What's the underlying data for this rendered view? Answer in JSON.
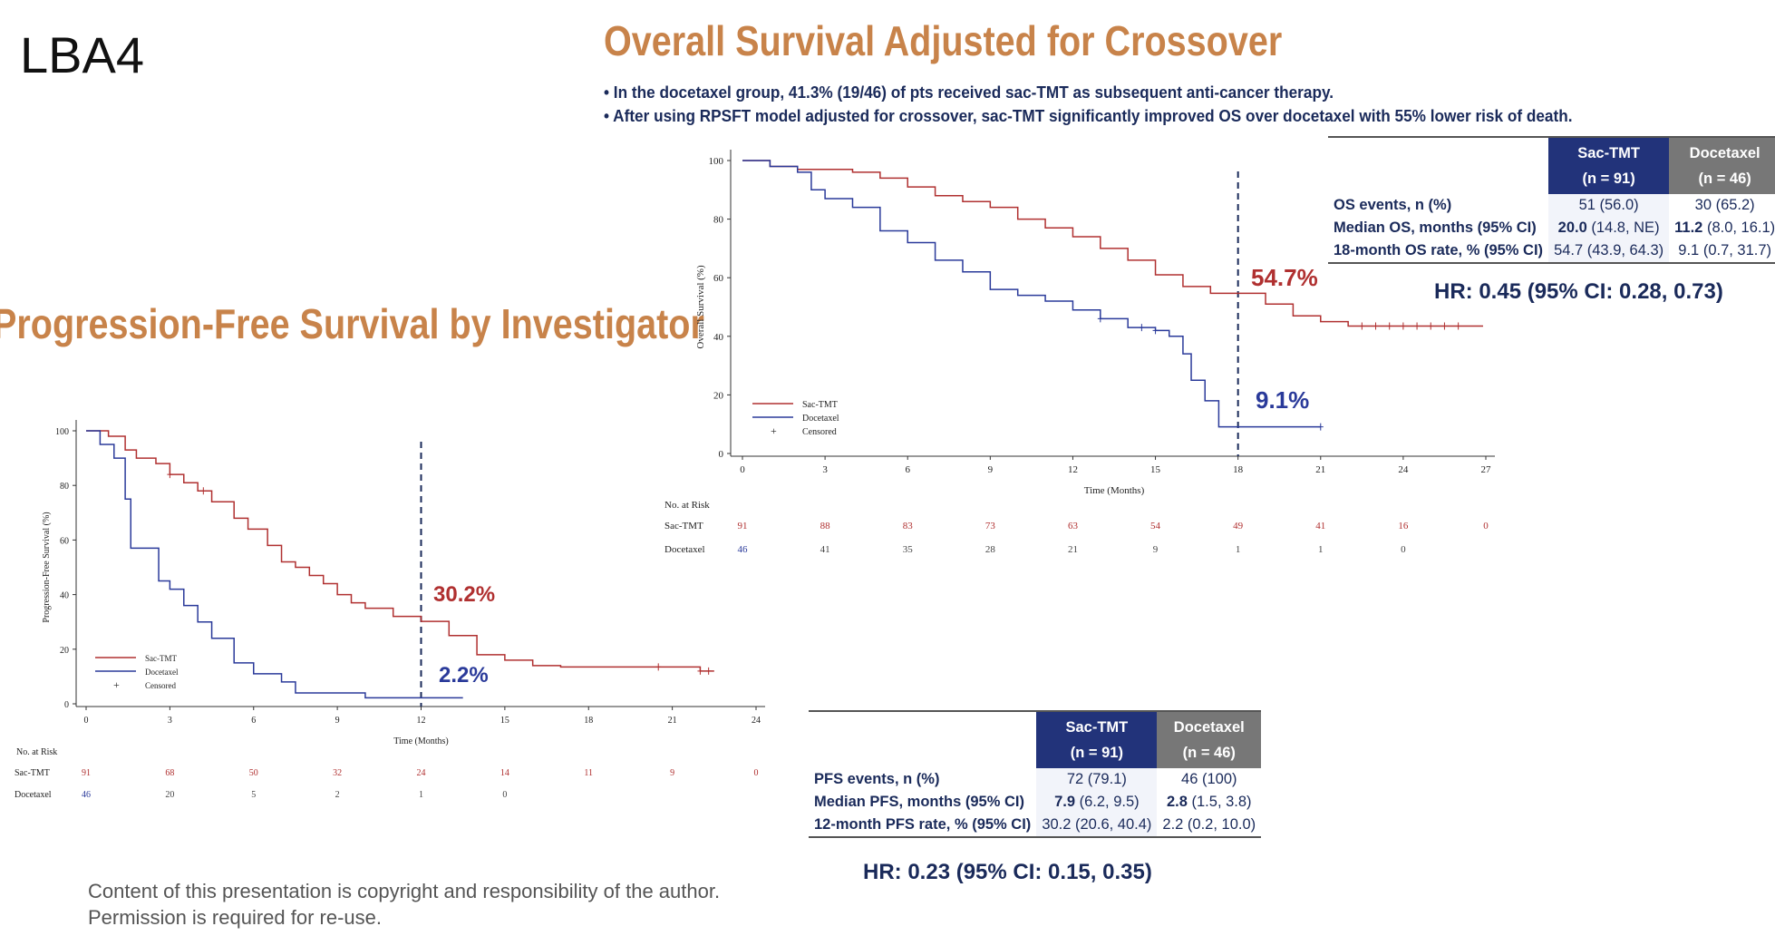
{
  "slide_label": "LBA4",
  "os": {
    "title": "Overall Survival Adjusted for Crossover",
    "bullets": [
      "• In the docetaxel group, 41.3% (19/46) of pts received sac-TMT as subsequent anti-cancer therapy.",
      "• After using RPSFT model adjusted for crossover, sac-TMT significantly improved OS over docetaxel with 55% lower risk of death."
    ],
    "table": {
      "headers": [
        [
          "Sac-TMT",
          "(n = 91)"
        ],
        [
          "Docetaxel",
          "(n = 46)"
        ]
      ],
      "rows": [
        {
          "label": "OS events, n (%)",
          "a_bold": "",
          "a": "51 (56.0)",
          "b_bold": "",
          "b": "30 (65.2)"
        },
        {
          "label": "Median OS, months (95% CI)",
          "a_bold": "20.0",
          "a": " (14.8, NE)",
          "b_bold": "11.2",
          "b": " (8.0, 16.1)"
        },
        {
          "label": "18-month OS rate, % (95% CI)",
          "a_bold": "",
          "a": "54.7 (43.9, 64.3)",
          "b_bold": "",
          "b": "9.1 (0.7, 31.7)"
        }
      ]
    },
    "hr": "HR: 0.45 (95% CI: 0.28, 0.73)"
  },
  "pfs": {
    "title": "Progression-Free Survival by Investigator",
    "table": {
      "headers": [
        [
          "Sac-TMT",
          "(n = 91)"
        ],
        [
          "Docetaxel",
          "(n = 46)"
        ]
      ],
      "rows": [
        {
          "label": "PFS events, n (%)",
          "a_bold": "",
          "a": "72 (79.1)",
          "b_bold": "",
          "b": "46 (100)"
        },
        {
          "label": "Median PFS, months (95% CI)",
          "a_bold": "7.9",
          "a": " (6.2, 9.5)",
          "b_bold": "2.8",
          "b": " (1.5, 3.8)"
        },
        {
          "label": "12-month PFS rate, % (95% CI)",
          "a_bold": "",
          "a": "30.2 (20.6, 40.4)",
          "b_bold": "",
          "b": "2.2 (0.2, 10.0)"
        }
      ]
    },
    "hr": "HR: 0.23 (95% CI: 0.15, 0.35)"
  },
  "copyright": [
    "Content of this presentation is copyright and responsibility of the author.",
    "Permission is required for re-use."
  ],
  "chart_data": [
    {
      "type": "line",
      "id": "os",
      "ylabel": "Overall Survival (%)",
      "xlabel": "Time (Months)",
      "xlim": [
        0,
        27
      ],
      "ylim": [
        0,
        100
      ],
      "xticks": [
        0,
        3,
        6,
        9,
        12,
        15,
        18,
        21,
        24,
        27
      ],
      "yticks": [
        0,
        20,
        40,
        60,
        80,
        100
      ],
      "marker_x": 18,
      "legend": [
        "Sac-TMT",
        "Docetaxel",
        "Censored"
      ],
      "annotations": [
        {
          "text": "54.7%",
          "series": 0
        },
        {
          "text": "9.1%",
          "series": 1
        }
      ],
      "series": [
        {
          "name": "Sac-TMT",
          "color": "#b03030",
          "points": [
            [
              0,
              100
            ],
            [
              1,
              98
            ],
            [
              2,
              97
            ],
            [
              4,
              96
            ],
            [
              5,
              94
            ],
            [
              6,
              91
            ],
            [
              7,
              88
            ],
            [
              8,
              86
            ],
            [
              9,
              84
            ],
            [
              10,
              80
            ],
            [
              11,
              77
            ],
            [
              12,
              74
            ],
            [
              13,
              70
            ],
            [
              14,
              66
            ],
            [
              15,
              61
            ],
            [
              16,
              57
            ],
            [
              17,
              54.7
            ],
            [
              19,
              51
            ],
            [
              20,
              47
            ],
            [
              21,
              45
            ],
            [
              22,
              43.5
            ],
            [
              26.9,
              43.5
            ]
          ],
          "censored": [
            22.5,
            23,
            23.5,
            24,
            24.5,
            25,
            25.5,
            26
          ]
        },
        {
          "name": "Docetaxel",
          "color": "#2a3a9a",
          "points": [
            [
              0,
              100
            ],
            [
              1,
              98
            ],
            [
              2,
              96
            ],
            [
              2.5,
              90
            ],
            [
              3,
              87
            ],
            [
              4,
              84
            ],
            [
              5,
              76
            ],
            [
              6,
              72
            ],
            [
              7,
              66
            ],
            [
              8,
              62
            ],
            [
              9,
              56
            ],
            [
              10,
              54
            ],
            [
              11,
              52
            ],
            [
              12,
              49
            ],
            [
              13,
              46
            ],
            [
              14,
              43
            ],
            [
              15,
              42
            ],
            [
              15.5,
              40
            ],
            [
              16,
              34
            ],
            [
              16.3,
              25
            ],
            [
              16.8,
              18
            ],
            [
              17.3,
              9.1
            ],
            [
              21,
              9.1
            ]
          ],
          "censored": [
            13,
            14.5,
            15,
            21
          ]
        }
      ],
      "risk_table": {
        "title": "No. at Risk",
        "rows": [
          {
            "name": "Sac-TMT",
            "values": [
              91,
              88,
              83,
              73,
              63,
              54,
              49,
              41,
              16,
              0
            ]
          },
          {
            "name": "Docetaxel",
            "values": [
              46,
              41,
              35,
              28,
              21,
              9,
              1,
              1,
              0
            ]
          }
        ]
      }
    },
    {
      "type": "line",
      "id": "pfs",
      "ylabel": "Progression-Free Survival (%)",
      "xlabel": "Time (Months)",
      "xlim": [
        0,
        24
      ],
      "ylim": [
        0,
        100
      ],
      "xticks": [
        0,
        3,
        6,
        9,
        12,
        15,
        18,
        21,
        24
      ],
      "yticks": [
        0,
        20,
        40,
        60,
        80,
        100
      ],
      "marker_x": 12,
      "legend": [
        "Sac-TMT",
        "Docetaxel",
        "Censored"
      ],
      "annotations": [
        {
          "text": "30.2%",
          "series": 0
        },
        {
          "text": "2.2%",
          "series": 1
        }
      ],
      "series": [
        {
          "name": "Sac-TMT",
          "color": "#b03030",
          "points": [
            [
              0,
              100
            ],
            [
              0.8,
              98
            ],
            [
              1.4,
              93
            ],
            [
              1.8,
              90
            ],
            [
              2.5,
              88
            ],
            [
              3,
              84
            ],
            [
              3.5,
              81
            ],
            [
              4,
              78
            ],
            [
              4.5,
              74
            ],
            [
              5.3,
              68
            ],
            [
              5.8,
              64
            ],
            [
              6.5,
              58
            ],
            [
              7,
              52
            ],
            [
              7.5,
              50
            ],
            [
              8,
              47
            ],
            [
              8.5,
              44
            ],
            [
              9,
              40
            ],
            [
              9.5,
              37
            ],
            [
              10,
              35
            ],
            [
              11,
              32
            ],
            [
              12,
              30.2
            ],
            [
              13,
              25
            ],
            [
              14,
              18
            ],
            [
              15,
              16
            ],
            [
              16,
              14
            ],
            [
              17,
              13.5
            ],
            [
              22,
              12
            ],
            [
              22.5,
              12
            ]
          ],
          "censored": [
            3,
            4.2,
            20.5,
            22,
            22.3
          ]
        },
        {
          "name": "Docetaxel",
          "color": "#2a3a9a",
          "points": [
            [
              0,
              100
            ],
            [
              0.5,
              95
            ],
            [
              1,
              90
            ],
            [
              1.4,
              75
            ],
            [
              1.6,
              57
            ],
            [
              2.6,
              45
            ],
            [
              3,
              42
            ],
            [
              3.5,
              36
            ],
            [
              4,
              30
            ],
            [
              4.5,
              24
            ],
            [
              5.3,
              15
            ],
            [
              6,
              11
            ],
            [
              7,
              8
            ],
            [
              7.5,
              4
            ],
            [
              9,
              4
            ],
            [
              10,
              2.2
            ],
            [
              13.5,
              2.2
            ]
          ],
          "censored": []
        }
      ],
      "risk_table": {
        "title": "No. at Risk",
        "rows": [
          {
            "name": "Sac-TMT",
            "values": [
              91,
              68,
              50,
              32,
              24,
              14,
              11,
              9,
              0
            ]
          },
          {
            "name": "Docetaxel",
            "values": [
              46,
              20,
              5,
              2,
              1,
              0
            ]
          }
        ]
      }
    }
  ]
}
